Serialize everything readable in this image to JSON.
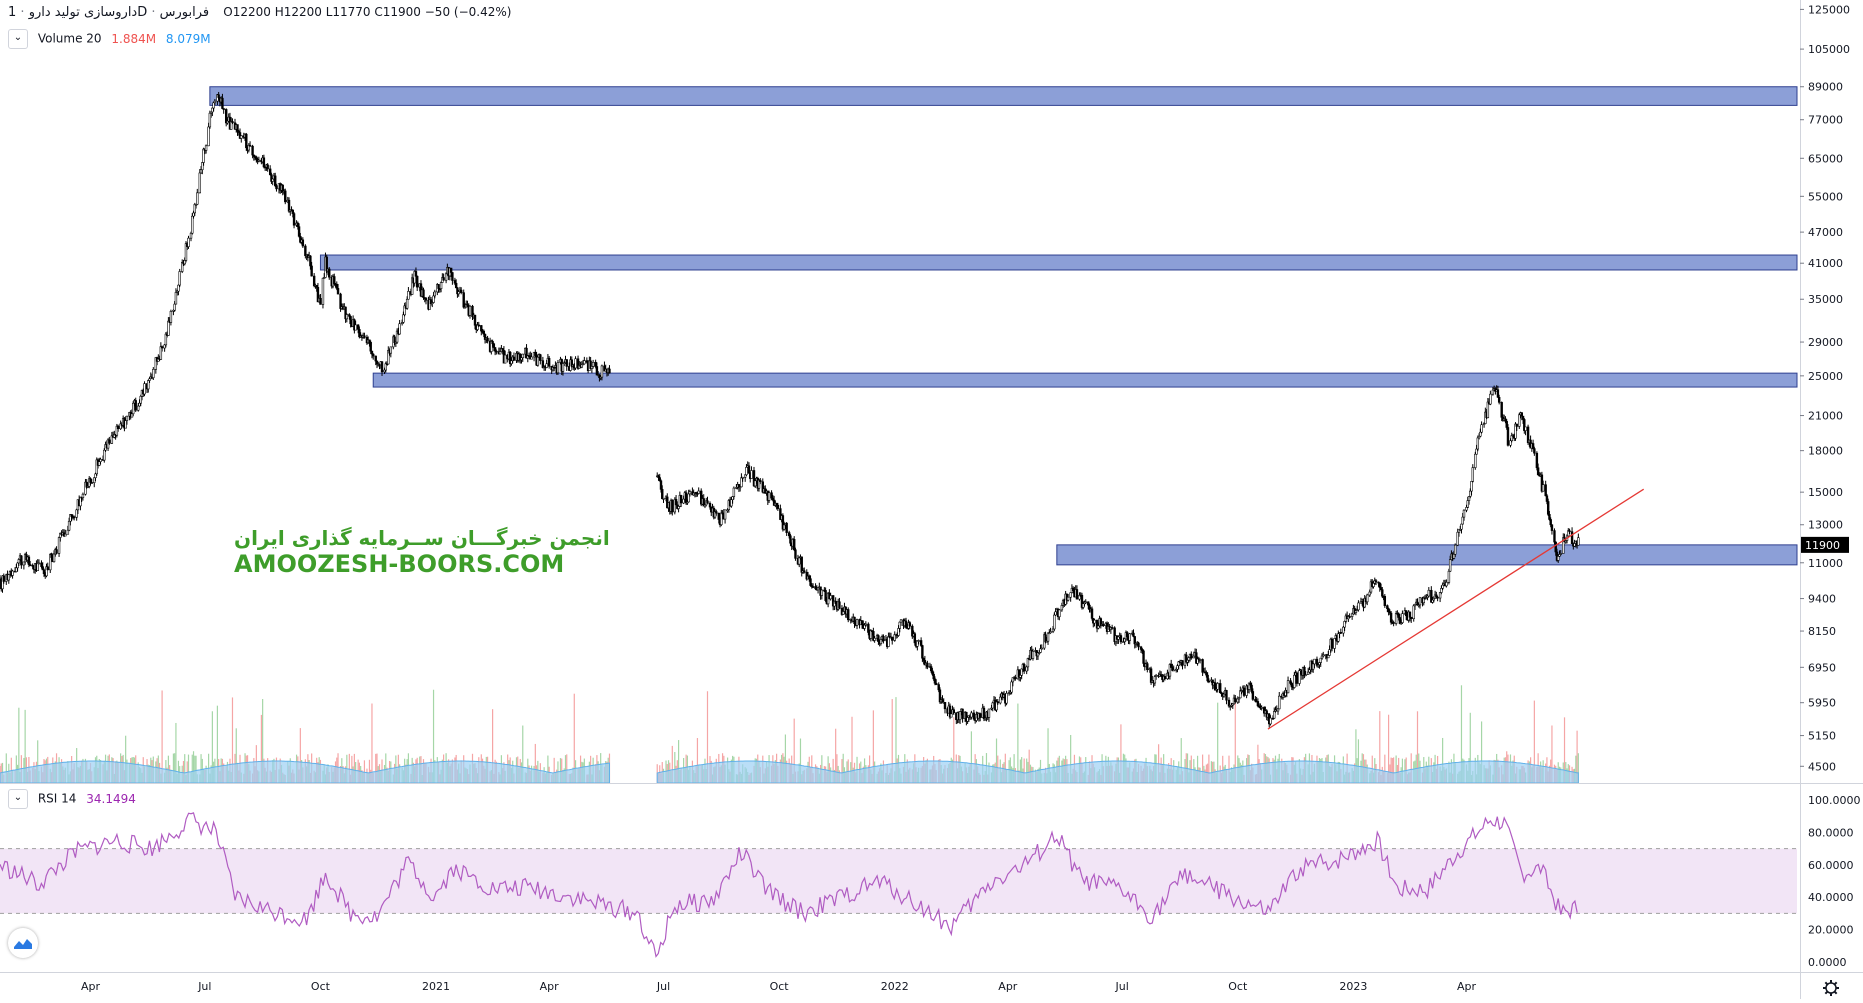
{
  "header": {
    "symbol": "داروسازی تولید دارو",
    "interval": "1D",
    "exchange": "فرابورس",
    "ohlc": "O12200  H12200  L11770  C11900  −50 (−0.42%)"
  },
  "volume_legend": {
    "name": "Volume 20",
    "v1": "1.884M",
    "v2": "8.079M"
  },
  "rsi_legend": {
    "name": "RSI 14",
    "value": "34.1494"
  },
  "watermark": {
    "line1": "انجمن خبرگـــان ســرمایه گذاری ایران",
    "line2": "AMOOZESH-BOORS.COM"
  },
  "colors": {
    "zone_fill": "#8c9fd7",
    "zone_stroke": "#2e3f8f",
    "trendline": "#e53935",
    "rsi_line": "#b05cc2",
    "rsi_band": "#f2e5f6",
    "volume_area": "#9dd0f3",
    "volume_up": "#a5d6a7",
    "volume_down": "#f5a5a5",
    "candle": "#000000",
    "price_label_bg": "#000000",
    "watermark": "#3e9d2a"
  },
  "icons": [
    "chevron-down-icon",
    "chevron-down-icon",
    "tradingview-logo-icon",
    "settings-gear-icon"
  ],
  "chart_data": [
    {
      "type": "candlestick",
      "title": "داروسازی تولید دارو · 1D · فرابورس",
      "y_scale": "log",
      "ylim": [
        4200,
        128000
      ],
      "xlim": [
        "2020-01-20",
        "2023-12-20"
      ],
      "y_ticks": [
        "125000",
        "105000",
        "89000",
        "77000",
        "65000",
        "55000",
        "47000",
        "41000",
        "35000",
        "29000",
        "25000",
        "21000",
        "18000",
        "15000",
        "13000",
        "11000",
        "9400",
        "8150",
        "6950",
        "5950",
        "5150",
        "4500"
      ],
      "x_ticks": [
        "Apr",
        "Jul",
        "Oct",
        "2021",
        "Apr",
        "Jul",
        "Oct",
        "2022",
        "Apr",
        "Jul",
        "Oct",
        "2023",
        "Apr"
      ],
      "x_tick_dates": [
        "2020-04-01",
        "2020-07-01",
        "2020-10-01",
        "2021-01-01",
        "2021-04-01",
        "2021-07-01",
        "2021-10-01",
        "2022-01-01",
        "2022-04-01",
        "2022-07-01",
        "2022-10-01",
        "2023-01-01",
        "2023-04-01"
      ],
      "last_price": "11900",
      "price_path": [
        [
          "2020-01-20",
          10000
        ],
        [
          "2020-02-05",
          11200
        ],
        [
          "2020-02-25",
          10600
        ],
        [
          "2020-03-20",
          14000
        ],
        [
          "2020-04-15",
          18500
        ],
        [
          "2020-05-10",
          22500
        ],
        [
          "2020-05-30",
          29000
        ],
        [
          "2020-06-20",
          48000
        ],
        [
          "2020-07-05",
          78000
        ],
        [
          "2020-07-10",
          87000
        ],
        [
          "2020-07-20",
          76000
        ],
        [
          "2020-08-10",
          67000
        ],
        [
          "2020-08-30",
          57000
        ],
        [
          "2020-09-20",
          43000
        ],
        [
          "2020-10-01",
          34000
        ],
        [
          "2020-10-05",
          41000
        ],
        [
          "2020-10-20",
          33000
        ],
        [
          "2020-11-10",
          28000
        ],
        [
          "2020-11-20",
          26000
        ],
        [
          "2020-12-05",
          32000
        ],
        [
          "2020-12-15",
          39000
        ],
        [
          "2020-12-25",
          34000
        ],
        [
          "2021-01-10",
          40000
        ],
        [
          "2021-01-25",
          34000
        ],
        [
          "2021-02-10",
          29000
        ],
        [
          "2021-02-25",
          27000
        ],
        [
          "2021-03-15",
          27500
        ],
        [
          "2021-04-05",
          26000
        ],
        [
          "2021-04-25",
          26500
        ],
        [
          "2021-05-20",
          25000
        ]
      ],
      "price_path_2": [
        [
          "2021-06-25",
          16000
        ],
        [
          "2021-07-05",
          14000
        ],
        [
          "2021-07-25",
          15000
        ],
        [
          "2021-08-15",
          13200
        ],
        [
          "2021-09-05",
          16500
        ],
        [
          "2021-09-20",
          15000
        ],
        [
          "2021-10-05",
          13000
        ],
        [
          "2021-10-25",
          10000
        ],
        [
          "2021-11-15",
          9200
        ],
        [
          "2021-12-05",
          8300
        ],
        [
          "2021-12-25",
          7800
        ],
        [
          "2022-01-10",
          8500
        ],
        [
          "2022-01-25",
          7200
        ],
        [
          "2022-02-10",
          5800
        ],
        [
          "2022-02-25",
          5600
        ],
        [
          "2022-03-15",
          5700
        ],
        [
          "2022-03-30",
          6100
        ],
        [
          "2022-04-15",
          7100
        ],
        [
          "2022-04-30",
          7800
        ],
        [
          "2022-05-15",
          9300
        ],
        [
          "2022-05-25",
          9700
        ],
        [
          "2022-06-10",
          8500
        ],
        [
          "2022-06-25",
          8000
        ],
        [
          "2022-07-10",
          7900
        ],
        [
          "2022-07-25",
          6600
        ],
        [
          "2022-08-10",
          6900
        ],
        [
          "2022-08-25",
          7400
        ],
        [
          "2022-09-10",
          6500
        ],
        [
          "2022-09-25",
          6000
        ],
        [
          "2022-10-10",
          6300
        ],
        [
          "2022-10-25",
          5500
        ],
        [
          "2022-11-10",
          6400
        ],
        [
          "2022-11-25",
          6900
        ],
        [
          "2022-12-10",
          7400
        ],
        [
          "2022-12-25",
          8400
        ],
        [
          "2023-01-10",
          9400
        ],
        [
          "2023-01-20",
          10300
        ],
        [
          "2023-02-01",
          8500
        ],
        [
          "2023-02-15",
          8800
        ],
        [
          "2023-03-01",
          9600
        ],
        [
          "2023-03-10",
          9300
        ],
        [
          "2023-03-20",
          11200
        ],
        [
          "2023-04-01",
          14000
        ],
        [
          "2023-04-10",
          18500
        ],
        [
          "2023-04-20",
          22500
        ],
        [
          "2023-04-25",
          23500
        ],
        [
          "2023-05-05",
          18500
        ],
        [
          "2023-05-15",
          21000
        ],
        [
          "2023-05-25",
          17500
        ],
        [
          "2023-06-05",
          14000
        ],
        [
          "2023-06-12",
          11200
        ],
        [
          "2023-06-20",
          12500
        ],
        [
          "2023-06-30",
          11900
        ]
      ],
      "resistance_zones": [
        {
          "from": "2020-07-05",
          "low": 82000,
          "high": 89000
        },
        {
          "from": "2020-10-01",
          "low": 39800,
          "high": 42500
        },
        {
          "from": "2020-11-12",
          "low": 23800,
          "high": 25300
        },
        {
          "from": "2022-05-10",
          "low": 10900,
          "high": 11900
        }
      ],
      "trendline": {
        "from": [
          "2022-10-25",
          5300
        ],
        "to": [
          "2023-08-20",
          15200
        ]
      },
      "volume_panel": {
        "legend": "Volume 20",
        "values": [
          "1.884M",
          "8.079M"
        ]
      }
    },
    {
      "type": "line",
      "title": "RSI 14",
      "ylim": [
        -5,
        105
      ],
      "y_ticks": [
        "100.0000",
        "80.0000",
        "60.0000",
        "40.0000",
        "20.0000",
        "0.0000"
      ],
      "band": [
        30,
        70
      ],
      "last_value": "34.1494",
      "rsi_path": [
        [
          "2020-01-20",
          60
        ],
        [
          "2020-02-20",
          48
        ],
        [
          "2020-03-20",
          68
        ],
        [
          "2020-04-20",
          75
        ],
        [
          "2020-05-20",
          70
        ],
        [
          "2020-06-20",
          88
        ],
        [
          "2020-07-10",
          80
        ],
        [
          "2020-07-25",
          40
        ],
        [
          "2020-08-20",
          32
        ],
        [
          "2020-09-20",
          26
        ],
        [
          "2020-10-05",
          55
        ],
        [
          "2020-10-25",
          30
        ],
        [
          "2020-11-15",
          28
        ],
        [
          "2020-12-10",
          62
        ],
        [
          "2020-12-30",
          40
        ],
        [
          "2021-01-15",
          58
        ],
        [
          "2021-02-15",
          45
        ],
        [
          "2021-03-15",
          46
        ],
        [
          "2021-04-20",
          40
        ],
        [
          "2021-05-20",
          34
        ],
        [
          "2021-06-10",
          30
        ],
        [
          "2021-06-25",
          2
        ],
        [
          "2021-07-10",
          35
        ],
        [
          "2021-08-10",
          38
        ],
        [
          "2021-09-01",
          68
        ],
        [
          "2021-09-20",
          45
        ],
        [
          "2021-10-20",
          30
        ],
        [
          "2021-11-20",
          40
        ],
        [
          "2021-12-20",
          50
        ],
        [
          "2022-01-20",
          35
        ],
        [
          "2022-02-15",
          22
        ],
        [
          "2022-03-20",
          50
        ],
        [
          "2022-04-15",
          60
        ],
        [
          "2022-05-10",
          78
        ],
        [
          "2022-05-30",
          50
        ],
        [
          "2022-06-30",
          45
        ],
        [
          "2022-07-25",
          28
        ],
        [
          "2022-08-20",
          55
        ],
        [
          "2022-09-20",
          42
        ],
        [
          "2022-10-25",
          30
        ],
        [
          "2022-11-20",
          58
        ],
        [
          "2022-12-20",
          63
        ],
        [
          "2023-01-20",
          75
        ],
        [
          "2023-02-05",
          45
        ],
        [
          "2023-03-01",
          45
        ],
        [
          "2023-03-25",
          68
        ],
        [
          "2023-04-20",
          88
        ],
        [
          "2023-05-01",
          86
        ],
        [
          "2023-05-15",
          55
        ],
        [
          "2023-05-30",
          58
        ],
        [
          "2023-06-15",
          30
        ],
        [
          "2023-06-30",
          34
        ]
      ]
    }
  ]
}
